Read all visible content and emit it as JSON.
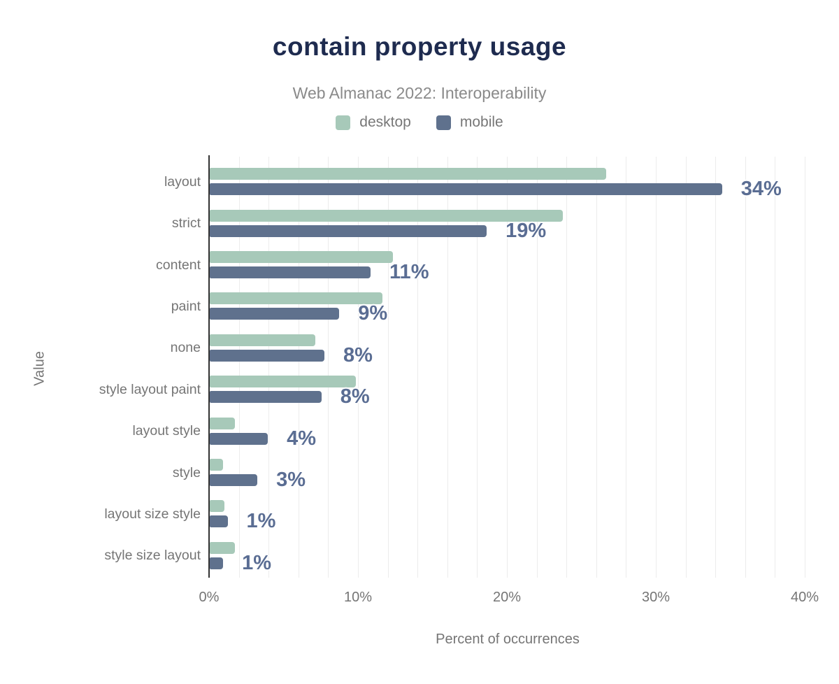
{
  "title": "contain property usage",
  "subtitle": "Web Almanac 2022: Interoperability",
  "legend": {
    "items": [
      {
        "label": "desktop",
        "color": "#a7c9b9"
      },
      {
        "label": "mobile",
        "color": "#5f718d"
      }
    ]
  },
  "chart_data": {
    "type": "bar",
    "orientation": "horizontal",
    "title": "contain property usage",
    "subtitle": "Web Almanac 2022: Interoperability",
    "xlabel": "Percent of occurrences",
    "ylabel": "Value",
    "xlim": [
      0,
      40
    ],
    "x_ticks": [
      "0%",
      "10%",
      "20%",
      "30%",
      "40%"
    ],
    "x_tick_values": [
      0,
      10,
      20,
      30,
      40
    ],
    "grid_step_percent": 2,
    "legend_position": "top",
    "categories": [
      "layout",
      "strict",
      "content",
      "paint",
      "none",
      "style layout paint",
      "layout style",
      "style",
      "layout size style",
      "style size layout"
    ],
    "series": [
      {
        "name": "desktop",
        "color": "#a7c9b9",
        "values": [
          26.6,
          23.7,
          12.3,
          11.6,
          7.1,
          9.8,
          1.7,
          0.9,
          1.0,
          1.7
        ]
      },
      {
        "name": "mobile",
        "color": "#5f718d",
        "values": [
          34.4,
          18.6,
          10.8,
          8.7,
          7.7,
          7.5,
          3.9,
          3.2,
          1.2,
          0.9
        ]
      }
    ],
    "value_labels": [
      "34%",
      "19%",
      "11%",
      "9%",
      "8%",
      "8%",
      "4%",
      "3%",
      "1%",
      "1%"
    ],
    "annotation_color": "#5a6d93",
    "axis_line_color": "#333333",
    "gridline_color": "#ececec"
  }
}
